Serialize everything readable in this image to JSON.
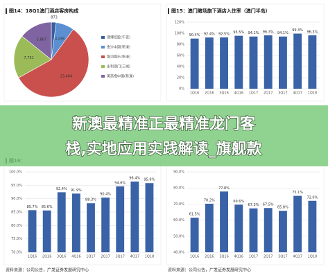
{
  "chart_data": [
    {
      "type": "pie",
      "title": "图14：18Q1澳门酒店客房构成",
      "categories": [
        "澳博控股(午夜)",
        "金沙中国(新濠)",
        "银河娱乐(新濠)",
        "永利澳门(三城)",
        "美高梅中国(新濠)"
      ],
      "values": [
        873,
        3236,
        23464,
        7751,
        5867
      ],
      "value_labels": [
        "873",
        "3,236",
        "23,464",
        "7,751",
        "5,867"
      ],
      "colors": [
        "#3b5e9c",
        "#5b8fd1",
        "#c9504d",
        "#9bbb59",
        "#8064a2"
      ]
    },
    {
      "type": "bar",
      "title": "图15：澳门赌场旗下酒店入住率（澳门半岛）",
      "categories": [
        "1Q16",
        "2Q16",
        "3Q16",
        "4Q16",
        "1Q17",
        "2Q17",
        "3Q17",
        "4Q17",
        "1Q18"
      ],
      "values": [
        90.4,
        92.4,
        92.5,
        95.5,
        94.1,
        96.3,
        94.1,
        99.3,
        96.3
      ],
      "value_labels": [
        "90.4%",
        "92.4%",
        "92.5%",
        "95.5%",
        "94.1%",
        "96.3%",
        "94.1%",
        "99.3%",
        "96.3%"
      ],
      "color": "#3a62a7",
      "ylim": [
        0,
        120
      ],
      "yticks": [
        {
          "value": 0,
          "label": "0%"
        },
        {
          "value": 20,
          "label": "20%"
        },
        {
          "value": 40,
          "label": "40%"
        },
        {
          "value": 60,
          "label": "60%"
        },
        {
          "value": 80,
          "label": "80%"
        },
        {
          "value": 100,
          "label": "100%"
        },
        {
          "value": 120,
          "label": "120%"
        }
      ],
      "grid": true
    },
    {
      "type": "bar",
      "title": "图16：",
      "categories": [
        "1Q16",
        "2Q16",
        "3Q16",
        "4Q16",
        "1Q17",
        "2Q17",
        "3Q17",
        "4Q17",
        "1Q18"
      ],
      "values": [
        85.7,
        85.6,
        92.4,
        91.9,
        88.3,
        90.4,
        94.6,
        96.4,
        95.8
      ],
      "value_labels": [
        "85.7%",
        "85.6%",
        "92.4%",
        "91.9%",
        "88.3%",
        "90.4%",
        "94.6%",
        "96.4%",
        "95.8%"
      ],
      "color": "#3a62a7",
      "ylim": [
        70,
        100
      ],
      "yticks": [
        {
          "value": 70,
          "label": "70.0%"
        },
        {
          "value": 75,
          "label": "75.0%"
        },
        {
          "value": 80,
          "label": "80.0%"
        },
        {
          "value": 85,
          "label": "85.0%"
        },
        {
          "value": 90,
          "label": "90.0%"
        },
        {
          "value": 95,
          "label": "95.0%"
        },
        {
          "value": 100,
          "label": "100.0%"
        }
      ],
      "grid": true
    },
    {
      "type": "bar",
      "categories": [
        "1Q16",
        "2Q16",
        "3Q16",
        "4Q16",
        "1Q17",
        "2Q17",
        "3Q17",
        "4Q17",
        "1Q18"
      ],
      "values": [
        61.5,
        70.2,
        77.8,
        69.6,
        67.3,
        67.5,
        65.8,
        75.1,
        72.0
      ],
      "value_labels": [
        "61.5%",
        "70.2%",
        "77.8%",
        "69.6%",
        "67.3%",
        "67.5%",
        "65.8%",
        "75.1%",
        "72.0%"
      ],
      "color": "#3a62a7",
      "ylim": [
        40,
        90
      ],
      "yticks": [
        {
          "value": 40,
          "label": "40.0%"
        },
        {
          "value": 50,
          "label": "50.0%"
        },
        {
          "value": 60,
          "label": "60.0%"
        },
        {
          "value": 70,
          "label": "70.0%"
        },
        {
          "value": 80,
          "label": "80.0%"
        },
        {
          "value": 90,
          "label": "90.0%"
        }
      ],
      "grid": true
    }
  ],
  "banner": {
    "lines": [
      "新澳最精准正最精准龙门客",
      "栈,实地应用实践解读_旗舰款"
    ]
  },
  "sources": [
    "资料来源：公司公告，广发证券发展研究中心",
    "资料来源：公司公告，广发证券发展研究中心"
  ]
}
